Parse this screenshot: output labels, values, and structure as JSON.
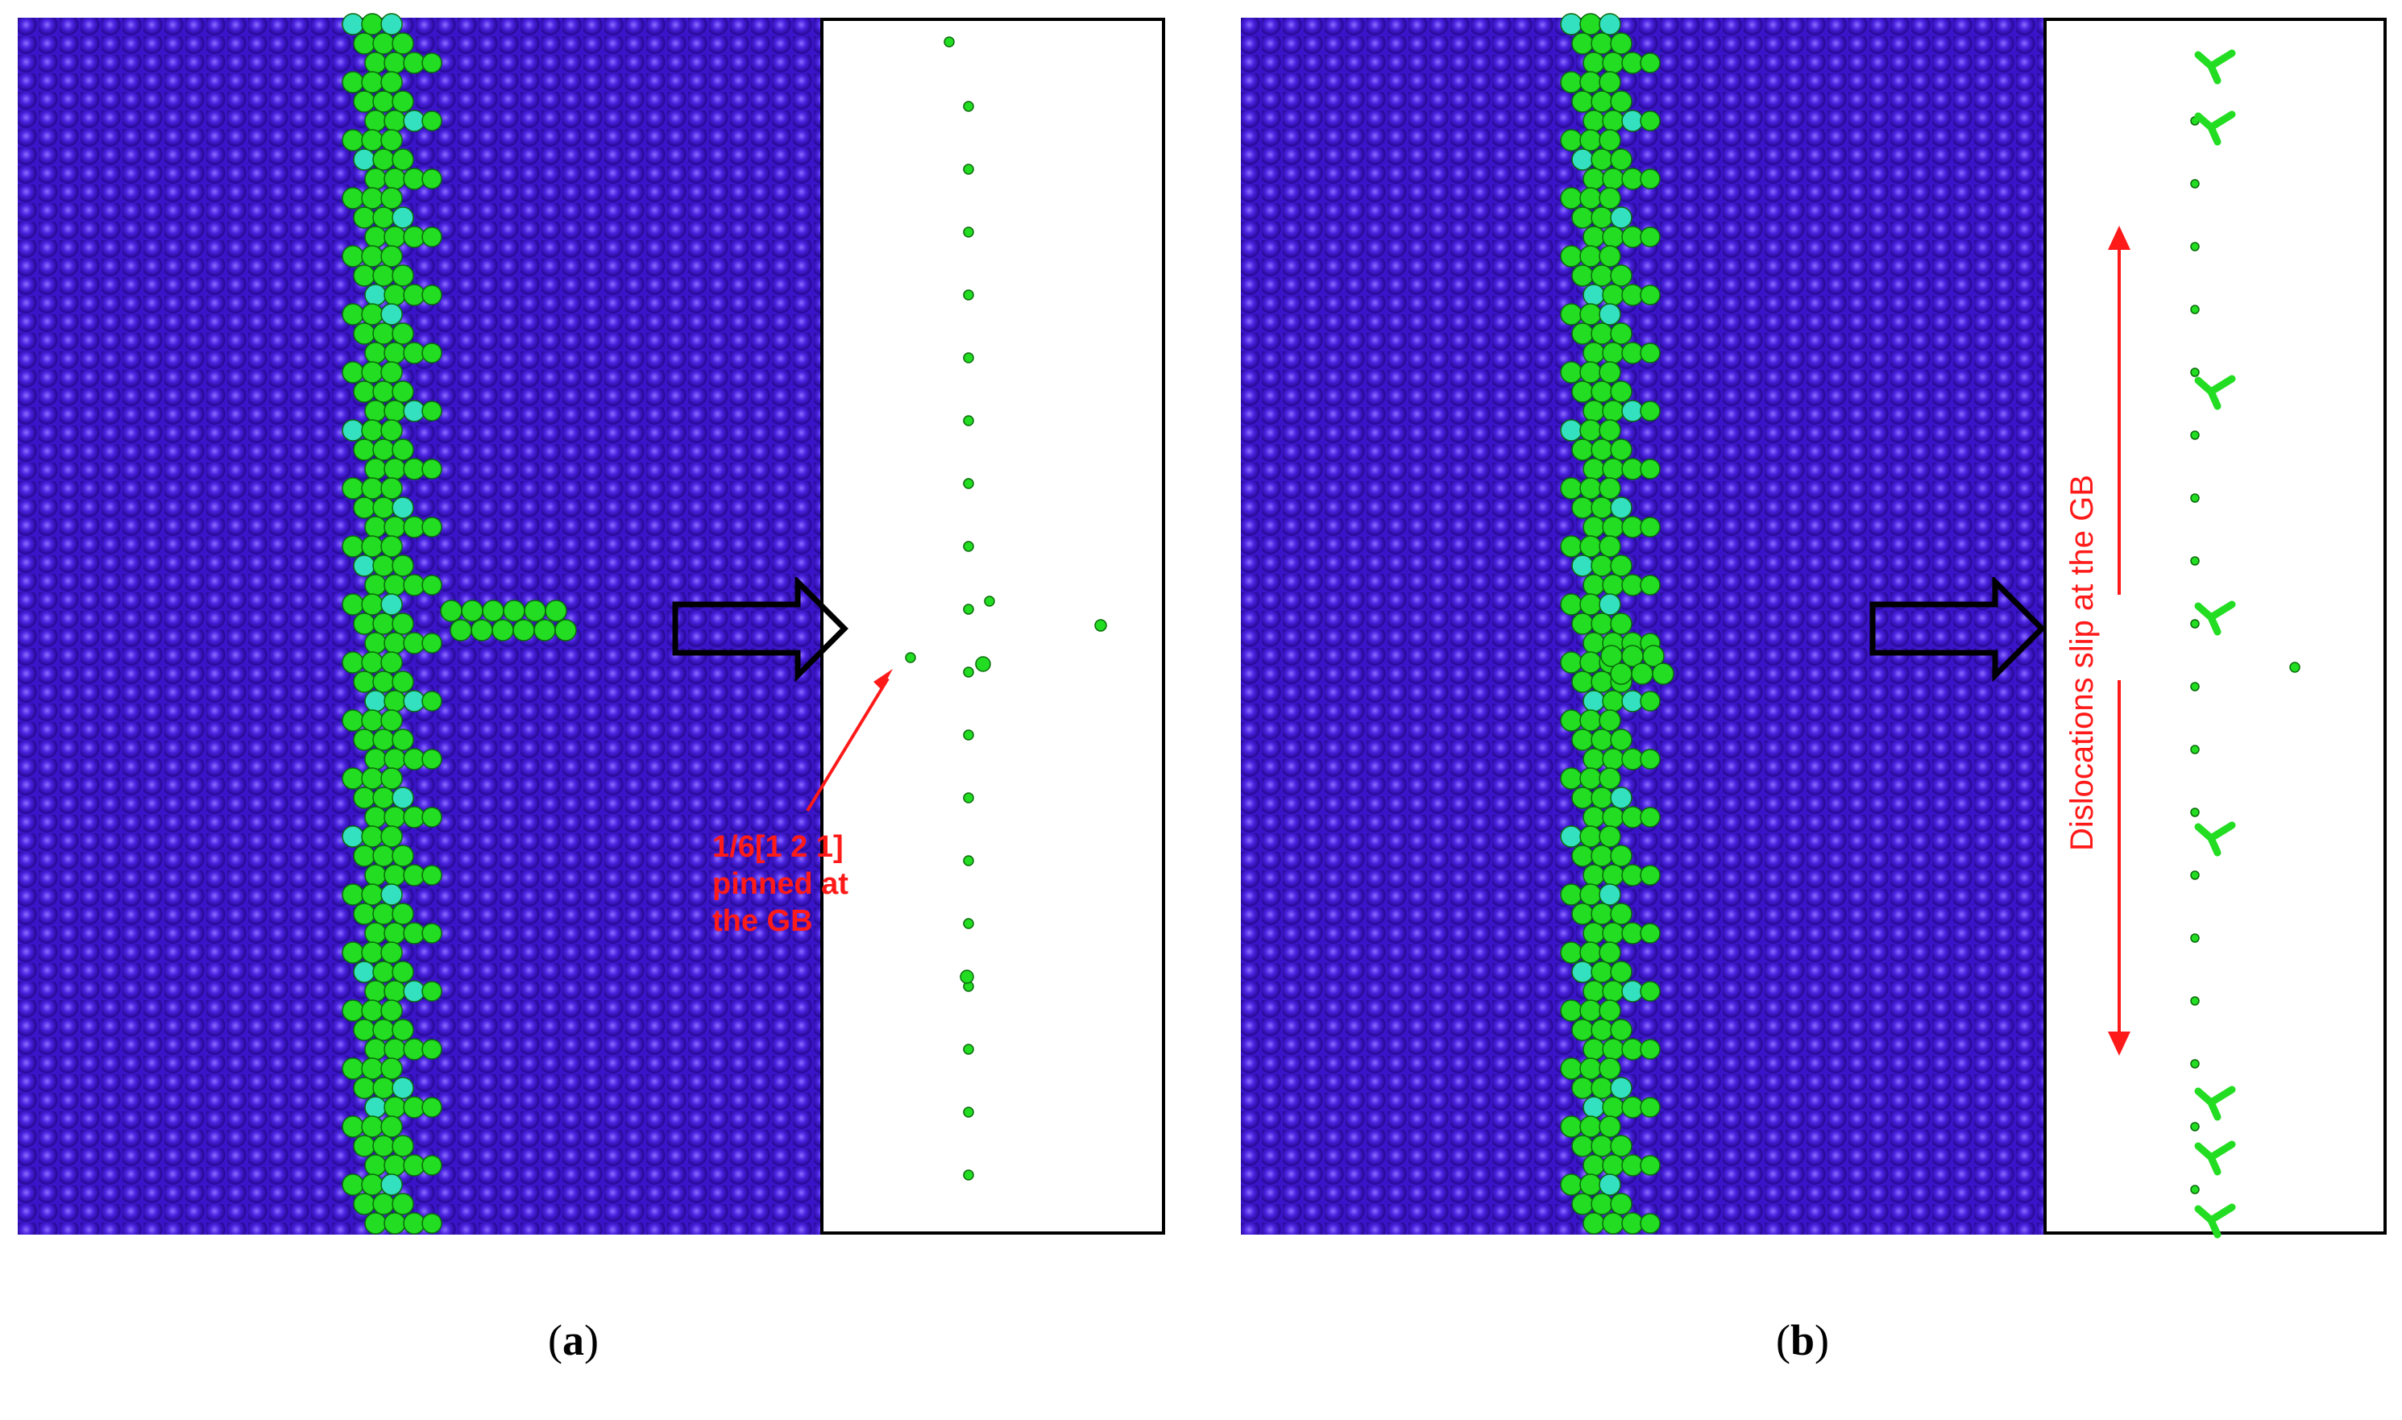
{
  "panels": [
    {
      "label_open": "(",
      "label_letter": "a",
      "label_close": ")",
      "annotation_lines": [
        "1/6[1 2 1]",
        "pinned at",
        "the GB"
      ]
    },
    {
      "label_open": "(",
      "label_letter": "b",
      "label_close": ")",
      "annotation": "Dislocations slip at the GB"
    }
  ],
  "colors": {
    "lattice": "#3a14c8",
    "gb_atoms": "#22dd22",
    "gb_cyan": "#33e0c0",
    "annotation": "#ff1a1a",
    "frame": "#000000"
  }
}
